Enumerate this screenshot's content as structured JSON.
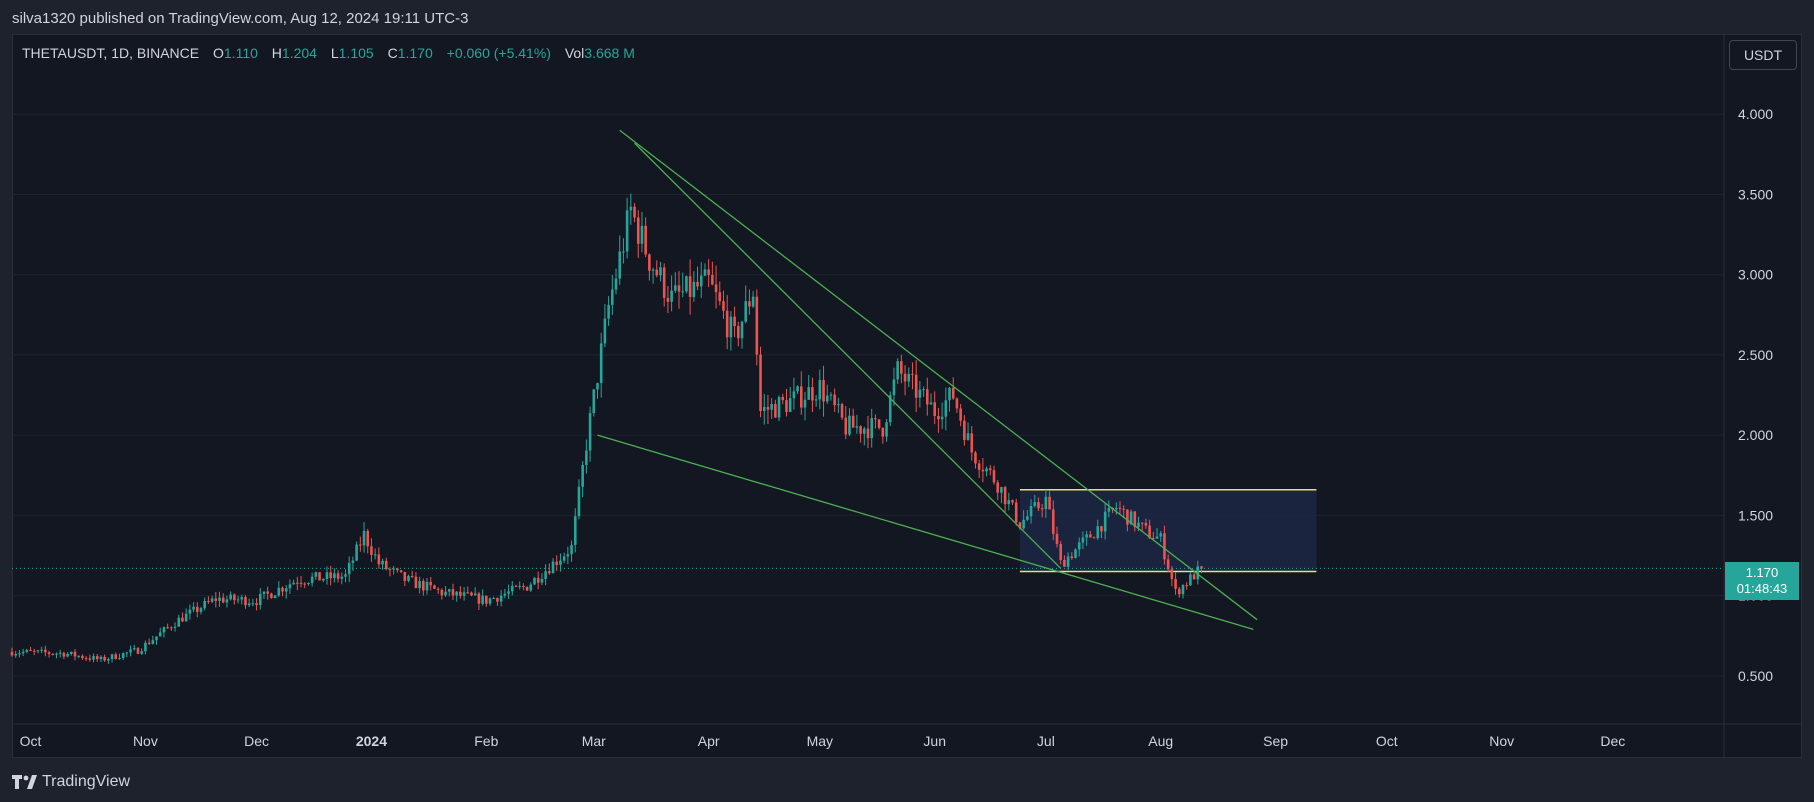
{
  "header": {
    "published_text": "silva1320 published on TradingView.com, Aug 12, 2024 19:11 UTC-3"
  },
  "legend": {
    "symbol": "THETAUSDT, 1D, BINANCE",
    "open_label": "O",
    "open": "1.110",
    "high_label": "H",
    "high": "1.204",
    "low_label": "L",
    "low": "1.105",
    "close_label": "C",
    "close": "1.170",
    "change": "+0.060 (+5.41%)",
    "vol_label": "Vol",
    "vol": "3.668 M"
  },
  "currency_button": {
    "label": "USDT"
  },
  "price_tag": {
    "price": "1.170",
    "countdown": "01:48:43"
  },
  "footer": {
    "brand": "TradingView"
  },
  "colors": {
    "up": "#26a69a",
    "down": "#ef5350",
    "trendline": "#4caf50",
    "zone_line": "#e5e07a",
    "zone_fill": "#1e2a4a",
    "background": "#131722"
  },
  "chart_data": {
    "type": "candlestick",
    "title": "THETAUSDT, 1D, BINANCE",
    "y_ticks": [
      "0.500",
      "1.000",
      "1.500",
      "2.000",
      "2.500",
      "3.000",
      "3.500",
      "4.000"
    ],
    "x_ticks": [
      "Oct",
      "Nov",
      "Dec",
      "2024",
      "Feb",
      "Mar",
      "Apr",
      "May",
      "Jun",
      "Jul",
      "Aug",
      "Sep",
      "Oct",
      "Nov",
      "Dec"
    ],
    "y_range": [
      0.2,
      4.5
    ],
    "x_range": [
      "2023-09-26",
      "2024-12-31"
    ],
    "price_anchors": [
      [
        "2023-09-26",
        0.65
      ],
      [
        "2023-10-10",
        0.64
      ],
      [
        "2023-10-20",
        0.6
      ],
      [
        "2023-10-30",
        0.66
      ],
      [
        "2023-11-10",
        0.85
      ],
      [
        "2023-11-20",
        0.98
      ],
      [
        "2023-12-01",
        0.97
      ],
      [
        "2023-12-12",
        1.1
      ],
      [
        "2023-12-25",
        1.12
      ],
      [
        "2023-12-30",
        1.38
      ],
      [
        "2024-01-03",
        1.2
      ],
      [
        "2024-01-10",
        1.1
      ],
      [
        "2024-01-20",
        1.02
      ],
      [
        "2024-02-01",
        0.97
      ],
      [
        "2024-02-12",
        1.06
      ],
      [
        "2024-02-24",
        1.3
      ],
      [
        "2024-02-28",
        1.95
      ],
      [
        "2024-03-05",
        2.8
      ],
      [
        "2024-03-11",
        3.4
      ],
      [
        "2024-03-16",
        3.1
      ],
      [
        "2024-03-22",
        2.85
      ],
      [
        "2024-04-01",
        2.95
      ],
      [
        "2024-04-08",
        2.6
      ],
      [
        "2024-04-13",
        2.9
      ],
      [
        "2024-04-15",
        2.15
      ],
      [
        "2024-04-22",
        2.2
      ],
      [
        "2024-05-01",
        2.3
      ],
      [
        "2024-05-08",
        2.05
      ],
      [
        "2024-05-18",
        2.05
      ],
      [
        "2024-05-22",
        2.4
      ],
      [
        "2024-06-01",
        2.15
      ],
      [
        "2024-06-06",
        2.25
      ],
      [
        "2024-06-11",
        1.9
      ],
      [
        "2024-06-18",
        1.7
      ],
      [
        "2024-06-24",
        1.45
      ],
      [
        "2024-07-01",
        1.6
      ],
      [
        "2024-07-05",
        1.2
      ],
      [
        "2024-07-12",
        1.35
      ],
      [
        "2024-07-20",
        1.55
      ],
      [
        "2024-07-28",
        1.4
      ],
      [
        "2024-08-01",
        1.35
      ],
      [
        "2024-08-05",
        1.02
      ],
      [
        "2024-08-12",
        1.17
      ]
    ],
    "trendlines": [
      {
        "from": [
          "2024-03-08",
          3.9
        ],
        "to": [
          "2024-08-27",
          0.85
        ]
      },
      {
        "from": [
          "2024-03-12",
          3.82
        ],
        "to": [
          "2024-07-05",
          1.17
        ]
      },
      {
        "from": [
          "2024-03-02",
          2.0
        ],
        "to": [
          "2024-08-26",
          0.79
        ]
      }
    ],
    "rectangle": {
      "from": [
        "2024-06-24",
        1.66
      ],
      "to": [
        "2024-09-12",
        1.15
      ]
    },
    "last_price": 1.17
  }
}
